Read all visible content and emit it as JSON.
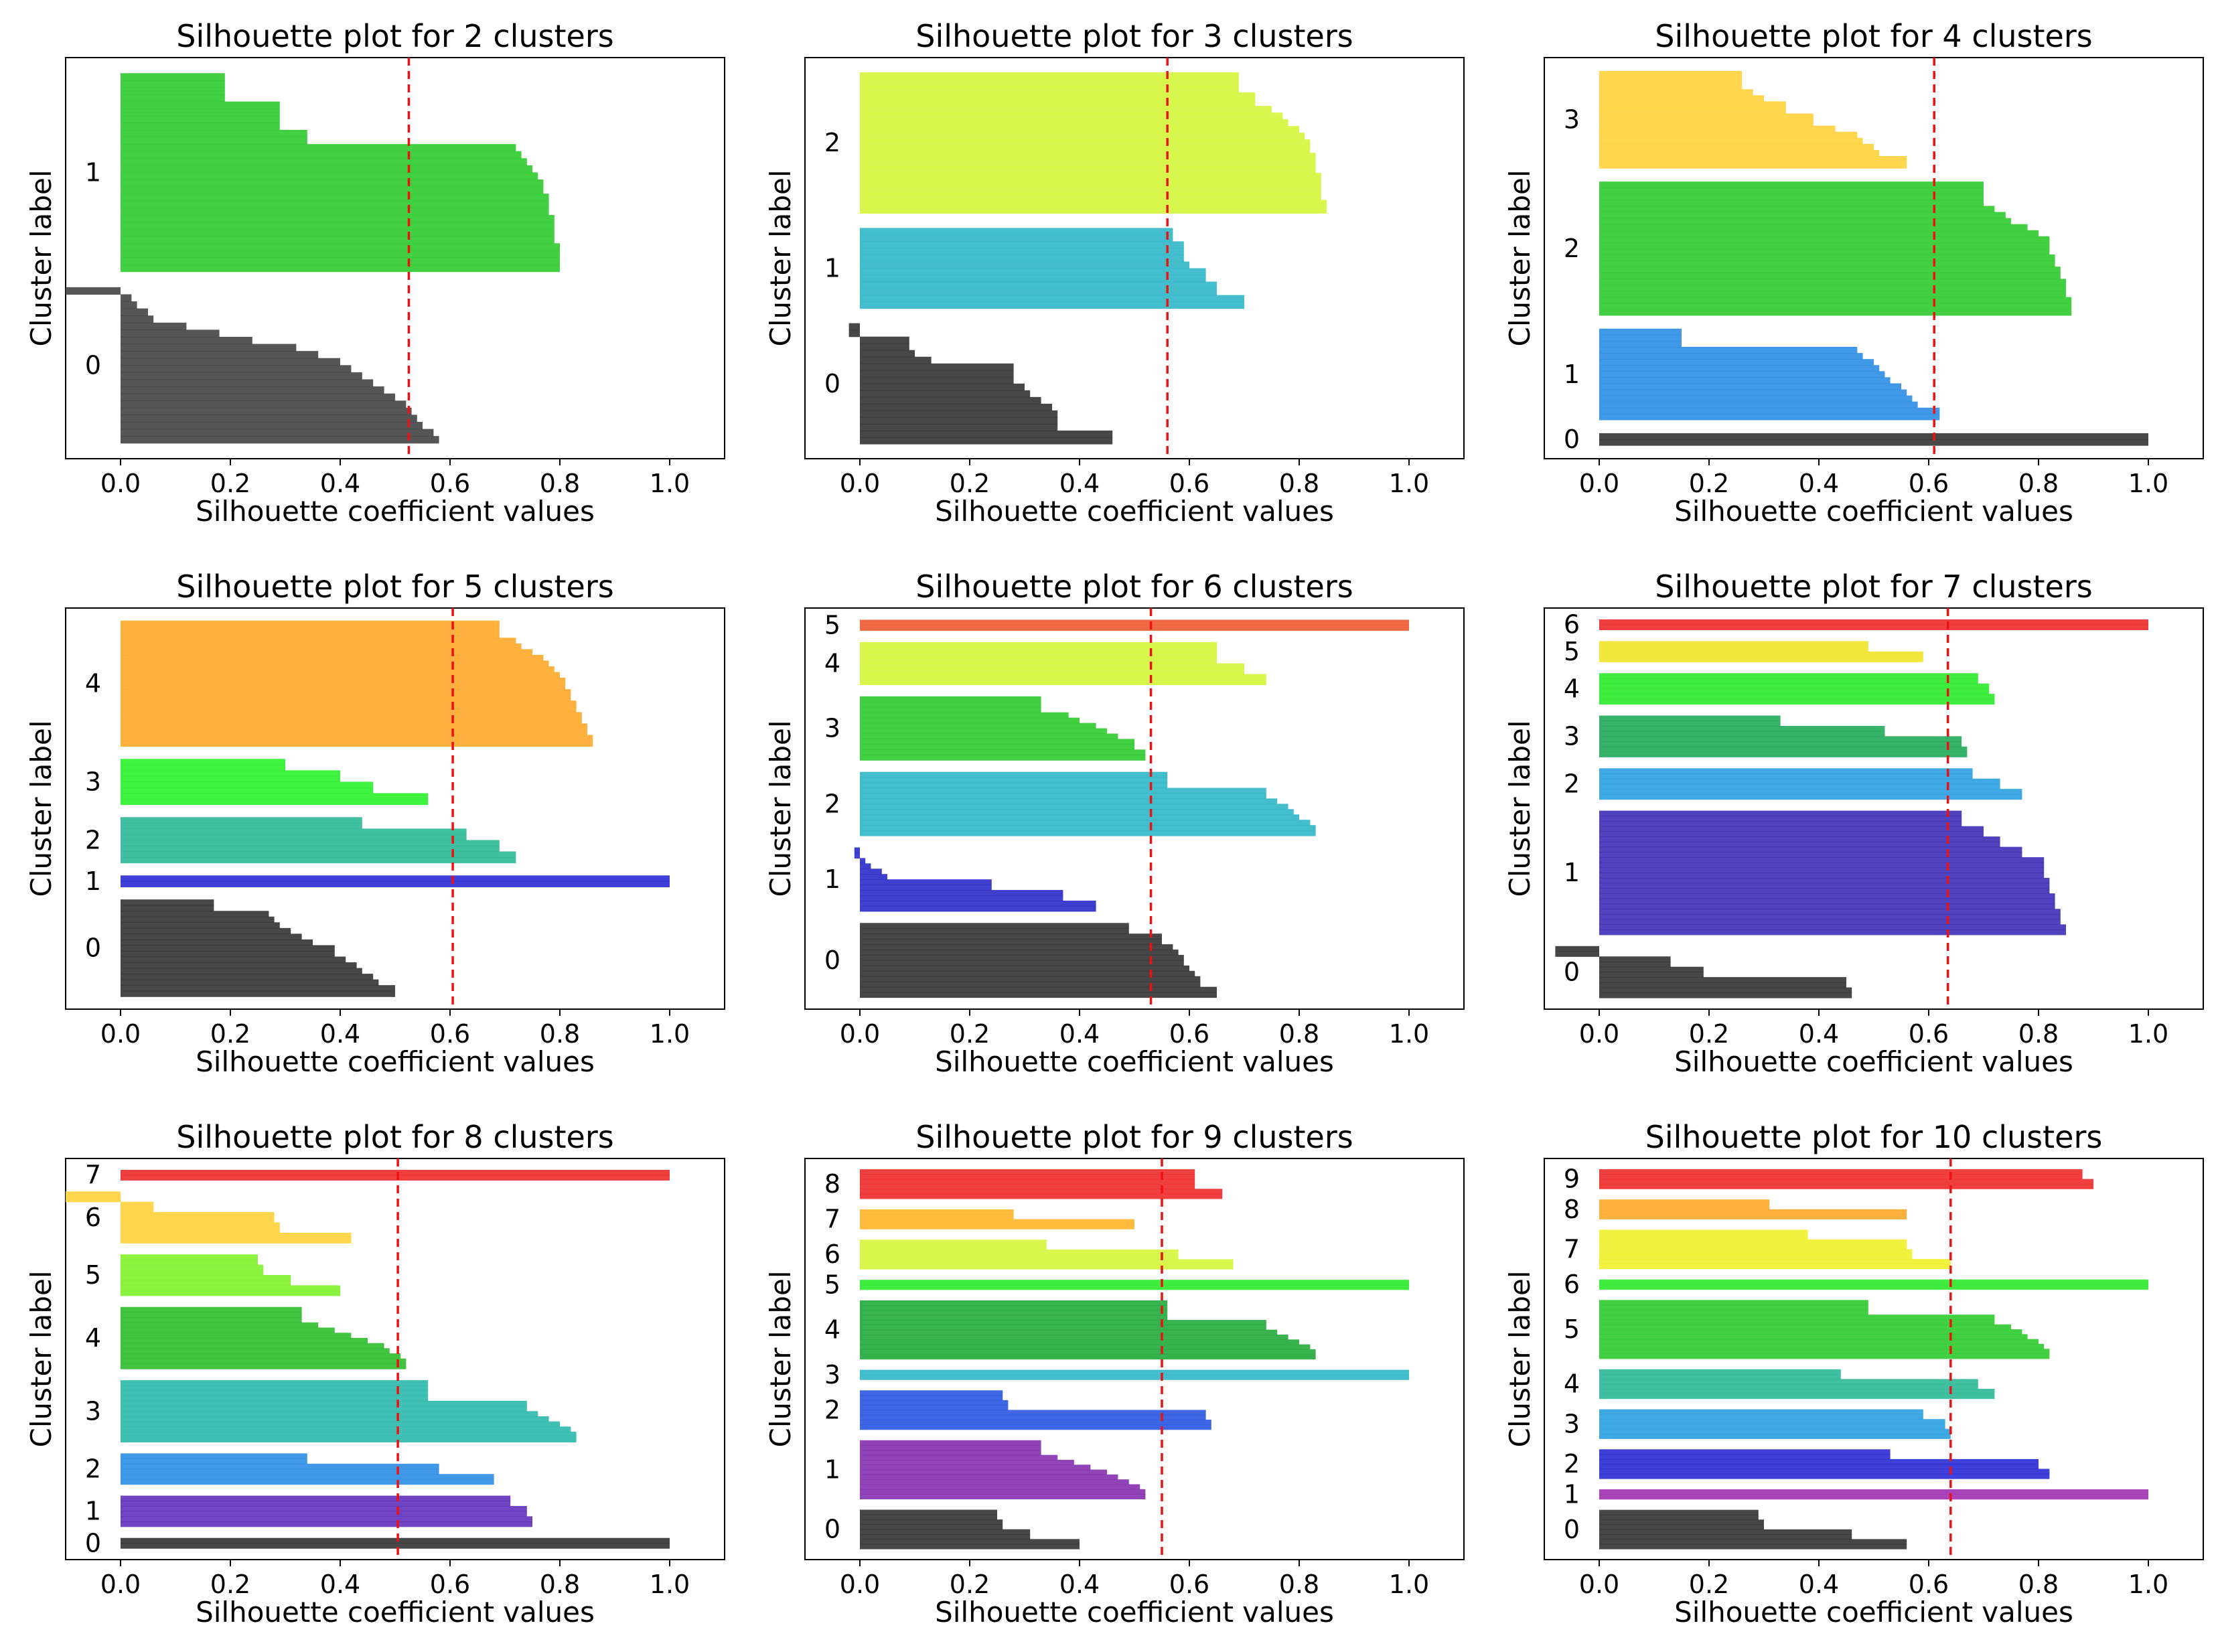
{
  "figure": {
    "xlabel": "Silhouette coefficient values",
    "ylabel": "Cluster label"
  },
  "chart_data": [
    {
      "type": "bar",
      "title": "Silhouette plot for 2 clusters",
      "n_clusters": 2,
      "xlim": [
        -0.1,
        1.1
      ],
      "xticks": [
        "0.0",
        "0.2",
        "0.4",
        "0.6",
        "0.8",
        "1.0"
      ],
      "average_score": 0.525,
      "clusters": [
        {
          "label": "0",
          "color": "#444444",
          "size": 22,
          "values": [
            0.58,
            0.57,
            0.55,
            0.54,
            0.53,
            0.52,
            0.5,
            0.48,
            0.46,
            0.44,
            0.42,
            0.4,
            0.36,
            0.32,
            0.24,
            0.18,
            0.12,
            0.06,
            0.05,
            0.03,
            0.02,
            -0.1
          ]
        },
        {
          "label": "1",
          "color": "#2ecb2e",
          "size": 28,
          "values": [
            0.8,
            0.8,
            0.8,
            0.8,
            0.79,
            0.79,
            0.79,
            0.79,
            0.78,
            0.78,
            0.78,
            0.77,
            0.77,
            0.76,
            0.75,
            0.74,
            0.73,
            0.72,
            0.34,
            0.34,
            0.29,
            0.29,
            0.29,
            0.29,
            0.19,
            0.19,
            0.19,
            0.19
          ]
        }
      ]
    },
    {
      "type": "bar",
      "title": "Silhouette plot for 3 clusters",
      "n_clusters": 3,
      "xlim": [
        -0.1,
        1.1
      ],
      "xticks": [
        "0.0",
        "0.2",
        "0.4",
        "0.6",
        "0.8",
        "1.0"
      ],
      "average_score": 0.56,
      "clusters": [
        {
          "label": "0",
          "color": "#333333",
          "size": 18,
          "values": [
            0.46,
            0.46,
            0.36,
            0.36,
            0.36,
            0.35,
            0.33,
            0.31,
            0.3,
            0.28,
            0.28,
            0.28,
            0.13,
            0.1,
            0.09,
            0.09,
            -0.02,
            -0.02
          ]
        },
        {
          "label": "1",
          "color": "#30b7c7",
          "size": 12,
          "values": [
            0.7,
            0.7,
            0.65,
            0.65,
            0.63,
            0.63,
            0.6,
            0.59,
            0.59,
            0.59,
            0.57,
            0.57
          ]
        },
        {
          "label": "2",
          "color": "#d4f53a",
          "size": 21,
          "values": [
            0.85,
            0.85,
            0.84,
            0.84,
            0.84,
            0.84,
            0.83,
            0.83,
            0.83,
            0.82,
            0.82,
            0.81,
            0.8,
            0.78,
            0.77,
            0.75,
            0.72,
            0.72,
            0.69,
            0.69,
            0.69
          ]
        }
      ]
    },
    {
      "type": "bar",
      "title": "Silhouette plot for 4 clusters",
      "n_clusters": 4,
      "xlim": [
        -0.1,
        1.1
      ],
      "xticks": [
        "0.0",
        "0.2",
        "0.4",
        "0.6",
        "0.8",
        "1.0"
      ],
      "average_score": 0.61,
      "clusters": [
        {
          "label": "0",
          "color": "#333333",
          "size": 2,
          "values": [
            1.0,
            1.0
          ]
        },
        {
          "label": "1",
          "color": "#2b8de3",
          "size": 15,
          "values": [
            0.62,
            0.62,
            0.58,
            0.57,
            0.56,
            0.55,
            0.53,
            0.52,
            0.51,
            0.5,
            0.48,
            0.47,
            0.15,
            0.15,
            0.15
          ]
        },
        {
          "label": "2",
          "color": "#2ecb2e",
          "size": 22,
          "values": [
            0.86,
            0.86,
            0.86,
            0.85,
            0.85,
            0.85,
            0.84,
            0.84,
            0.83,
            0.83,
            0.82,
            0.82,
            0.82,
            0.8,
            0.78,
            0.75,
            0.74,
            0.72,
            0.7,
            0.7,
            0.7,
            0.7
          ]
        },
        {
          "label": "3",
          "color": "#ffd23a",
          "size": 16,
          "values": [
            0.56,
            0.56,
            0.51,
            0.5,
            0.48,
            0.47,
            0.43,
            0.39,
            0.39,
            0.34,
            0.34,
            0.3,
            0.28,
            0.26,
            0.26,
            0.26
          ]
        }
      ]
    },
    {
      "type": "bar",
      "title": "Silhouette plot for 5 clusters",
      "n_clusters": 5,
      "xlim": [
        -0.1,
        1.1
      ],
      "xticks": [
        "0.0",
        "0.2",
        "0.4",
        "0.6",
        "0.8",
        "1.0"
      ],
      "average_score": 0.605,
      "clusters": [
        {
          "label": "0",
          "color": "#333333",
          "size": 17,
          "values": [
            0.5,
            0.5,
            0.47,
            0.46,
            0.44,
            0.43,
            0.41,
            0.39,
            0.39,
            0.35,
            0.33,
            0.31,
            0.29,
            0.28,
            0.27,
            0.17,
            0.17
          ]
        },
        {
          "label": "1",
          "color": "#2a2ad6",
          "size": 2,
          "values": [
            1.0,
            1.0
          ]
        },
        {
          "label": "2",
          "color": "#2bb996",
          "size": 8,
          "values": [
            0.72,
            0.72,
            0.69,
            0.69,
            0.63,
            0.63,
            0.44,
            0.44
          ]
        },
        {
          "label": "3",
          "color": "#2bf22b",
          "size": 8,
          "values": [
            0.56,
            0.56,
            0.46,
            0.46,
            0.4,
            0.4,
            0.3,
            0.3
          ]
        },
        {
          "label": "4",
          "color": "#ffa92a",
          "size": 22,
          "values": [
            0.86,
            0.86,
            0.85,
            0.85,
            0.84,
            0.84,
            0.83,
            0.83,
            0.82,
            0.82,
            0.81,
            0.81,
            0.8,
            0.79,
            0.78,
            0.77,
            0.75,
            0.73,
            0.72,
            0.69,
            0.69,
            0.69
          ]
        }
      ]
    },
    {
      "type": "bar",
      "title": "Silhouette plot for 6 clusters",
      "n_clusters": 6,
      "xlim": [
        -0.1,
        1.1
      ],
      "xticks": [
        "0.0",
        "0.2",
        "0.4",
        "0.6",
        "0.8",
        "1.0"
      ],
      "average_score": 0.53,
      "clusters": [
        {
          "label": "0",
          "color": "#333333",
          "size": 14,
          "values": [
            0.65,
            0.65,
            0.62,
            0.62,
            0.61,
            0.6,
            0.59,
            0.59,
            0.58,
            0.57,
            0.55,
            0.55,
            0.49,
            0.49
          ]
        },
        {
          "label": "1",
          "color": "#2a2ac9",
          "size": 12,
          "values": [
            0.43,
            0.43,
            0.37,
            0.37,
            0.24,
            0.24,
            0.05,
            0.04,
            0.02,
            0.01,
            -0.01,
            -0.01
          ]
        },
        {
          "label": "2",
          "color": "#30b7c7",
          "size": 12,
          "values": [
            0.83,
            0.83,
            0.82,
            0.8,
            0.79,
            0.78,
            0.76,
            0.74,
            0.74,
            0.56,
            0.56,
            0.56
          ]
        },
        {
          "label": "3",
          "color": "#2ecb2e",
          "size": 12,
          "values": [
            0.52,
            0.52,
            0.5,
            0.5,
            0.47,
            0.45,
            0.43,
            0.4,
            0.38,
            0.33,
            0.33,
            0.33
          ]
        },
        {
          "label": "4",
          "color": "#d4f53a",
          "size": 8,
          "values": [
            0.74,
            0.74,
            0.7,
            0.7,
            0.65,
            0.65,
            0.65,
            0.65
          ]
        },
        {
          "label": "5",
          "color": "#f05a32",
          "size": 2,
          "values": [
            1.0,
            1.0
          ]
        }
      ]
    },
    {
      "type": "bar",
      "title": "Silhouette plot for 7 clusters",
      "n_clusters": 7,
      "xlim": [
        -0.1,
        1.1
      ],
      "xticks": [
        "0.0",
        "0.2",
        "0.4",
        "0.6",
        "0.8",
        "1.0"
      ],
      "average_score": 0.635,
      "clusters": [
        {
          "label": "0",
          "color": "#333333",
          "size": 10,
          "values": [
            0.46,
            0.46,
            0.45,
            0.45,
            0.19,
            0.19,
            0.13,
            0.13,
            -0.08,
            -0.08
          ]
        },
        {
          "label": "1",
          "color": "#3c2db5",
          "size": 24,
          "values": [
            0.85,
            0.85,
            0.84,
            0.84,
            0.84,
            0.83,
            0.83,
            0.83,
            0.82,
            0.82,
            0.82,
            0.81,
            0.81,
            0.81,
            0.81,
            0.77,
            0.77,
            0.73,
            0.73,
            0.7,
            0.7,
            0.66,
            0.66,
            0.66
          ]
        },
        {
          "label": "2",
          "color": "#2b9ee0",
          "size": 6,
          "values": [
            0.77,
            0.77,
            0.73,
            0.73,
            0.68,
            0.68
          ]
        },
        {
          "label": "3",
          "color": "#22a85a",
          "size": 8,
          "values": [
            0.67,
            0.67,
            0.66,
            0.66,
            0.52,
            0.52,
            0.33,
            0.33
          ]
        },
        {
          "label": "4",
          "color": "#2bea2b",
          "size": 6,
          "values": [
            0.72,
            0.72,
            0.71,
            0.71,
            0.69,
            0.69
          ]
        },
        {
          "label": "5",
          "color": "#f0e42a",
          "size": 4,
          "values": [
            0.59,
            0.59,
            0.49,
            0.49
          ]
        },
        {
          "label": "6",
          "color": "#ee2a2a",
          "size": 2,
          "values": [
            1.0,
            1.0
          ]
        }
      ]
    },
    {
      "type": "bar",
      "title": "Silhouette plot for 8 clusters",
      "n_clusters": 8,
      "xlim": [
        -0.1,
        1.1
      ],
      "xticks": [
        "0.0",
        "0.2",
        "0.4",
        "0.6",
        "0.8",
        "1.0"
      ],
      "average_score": 0.505,
      "clusters": [
        {
          "label": "0",
          "color": "#333333",
          "size": 2,
          "values": [
            1.0,
            1.0
          ]
        },
        {
          "label": "1",
          "color": "#6130bb",
          "size": 6,
          "values": [
            0.75,
            0.75,
            0.74,
            0.74,
            0.71,
            0.71
          ]
        },
        {
          "label": "2",
          "color": "#2b8de3",
          "size": 6,
          "values": [
            0.68,
            0.68,
            0.58,
            0.58,
            0.34,
            0.34
          ]
        },
        {
          "label": "3",
          "color": "#2bb9aa",
          "size": 12,
          "values": [
            0.83,
            0.83,
            0.82,
            0.8,
            0.78,
            0.76,
            0.74,
            0.74,
            0.56,
            0.56,
            0.56,
            0.56
          ]
        },
        {
          "label": "4",
          "color": "#2ebd2e",
          "size": 12,
          "values": [
            0.52,
            0.52,
            0.51,
            0.49,
            0.48,
            0.45,
            0.42,
            0.39,
            0.36,
            0.33,
            0.33,
            0.33
          ]
        },
        {
          "label": "5",
          "color": "#80f22b",
          "size": 8,
          "values": [
            0.4,
            0.4,
            0.31,
            0.31,
            0.26,
            0.26,
            0.25,
            0.25
          ]
        },
        {
          "label": "6",
          "color": "#ffd23a",
          "size": 10,
          "values": [
            0.42,
            0.42,
            0.29,
            0.29,
            0.28,
            0.28,
            0.06,
            0.06,
            -0.1,
            -0.1
          ]
        },
        {
          "label": "7",
          "color": "#ee2a2a",
          "size": 2,
          "values": [
            1.0,
            1.0
          ]
        }
      ]
    },
    {
      "type": "bar",
      "title": "Silhouette plot for 9 clusters",
      "n_clusters": 9,
      "xlim": [
        -0.1,
        1.1
      ],
      "xticks": [
        "0.0",
        "0.2",
        "0.4",
        "0.6",
        "0.8",
        "1.0"
      ],
      "average_score": 0.55,
      "clusters": [
        {
          "label": "0",
          "color": "#333333",
          "size": 8,
          "values": [
            0.4,
            0.4,
            0.31,
            0.31,
            0.26,
            0.26,
            0.25,
            0.25
          ]
        },
        {
          "label": "1",
          "color": "#8430b0",
          "size": 12,
          "values": [
            0.52,
            0.52,
            0.51,
            0.49,
            0.47,
            0.45,
            0.42,
            0.39,
            0.36,
            0.33,
            0.33,
            0.33
          ]
        },
        {
          "label": "2",
          "color": "#2a56e0",
          "size": 8,
          "values": [
            0.64,
            0.64,
            0.63,
            0.63,
            0.27,
            0.27,
            0.26,
            0.26
          ]
        },
        {
          "label": "3",
          "color": "#30b7c7",
          "size": 2,
          "values": [
            1.0,
            1.0
          ]
        },
        {
          "label": "4",
          "color": "#22a83c",
          "size": 12,
          "values": [
            0.83,
            0.83,
            0.82,
            0.8,
            0.78,
            0.76,
            0.74,
            0.74,
            0.56,
            0.56,
            0.56,
            0.56
          ]
        },
        {
          "label": "5",
          "color": "#2bea2b",
          "size": 2,
          "values": [
            1.0,
            1.0
          ]
        },
        {
          "label": "6",
          "color": "#d4f53a",
          "size": 6,
          "values": [
            0.68,
            0.68,
            0.58,
            0.58,
            0.34,
            0.34
          ]
        },
        {
          "label": "7",
          "color": "#ffb52a",
          "size": 4,
          "values": [
            0.5,
            0.5,
            0.28,
            0.28
          ]
        },
        {
          "label": "8",
          "color": "#ee2a2a",
          "size": 6,
          "values": [
            0.66,
            0.66,
            0.61,
            0.61,
            0.61,
            0.61
          ]
        }
      ]
    },
    {
      "type": "bar",
      "title": "Silhouette plot for 10 clusters",
      "n_clusters": 10,
      "xlim": [
        -0.1,
        1.1
      ],
      "xticks": [
        "0.0",
        "0.2",
        "0.4",
        "0.6",
        "0.8",
        "1.0"
      ],
      "average_score": 0.64,
      "clusters": [
        {
          "label": "0",
          "color": "#333333",
          "size": 8,
          "values": [
            0.56,
            0.56,
            0.46,
            0.46,
            0.3,
            0.3,
            0.29,
            0.29
          ]
        },
        {
          "label": "1",
          "color": "#a030b0",
          "size": 2,
          "values": [
            1.0,
            1.0
          ]
        },
        {
          "label": "2",
          "color": "#2a2ad6",
          "size": 6,
          "values": [
            0.82,
            0.82,
            0.8,
            0.8,
            0.53,
            0.53
          ]
        },
        {
          "label": "3",
          "color": "#2b9ee0",
          "size": 6,
          "values": [
            0.64,
            0.64,
            0.63,
            0.63,
            0.59,
            0.59
          ]
        },
        {
          "label": "4",
          "color": "#2bb996",
          "size": 6,
          "values": [
            0.72,
            0.72,
            0.69,
            0.69,
            0.44,
            0.44
          ]
        },
        {
          "label": "5",
          "color": "#2ecb2e",
          "size": 12,
          "values": [
            0.82,
            0.82,
            0.81,
            0.8,
            0.78,
            0.77,
            0.75,
            0.72,
            0.72,
            0.49,
            0.49,
            0.49
          ]
        },
        {
          "label": "6",
          "color": "#2bea2b",
          "size": 2,
          "values": [
            1.0,
            1.0
          ]
        },
        {
          "label": "7",
          "color": "#f0f02a",
          "size": 8,
          "values": [
            0.64,
            0.64,
            0.57,
            0.57,
            0.56,
            0.56,
            0.38,
            0.38
          ]
        },
        {
          "label": "8",
          "color": "#ffa92a",
          "size": 4,
          "values": [
            0.56,
            0.56,
            0.31,
            0.31
          ]
        },
        {
          "label": "9",
          "color": "#ee2a2a",
          "size": 4,
          "values": [
            0.9,
            0.9,
            0.88,
            0.88
          ]
        }
      ]
    }
  ]
}
